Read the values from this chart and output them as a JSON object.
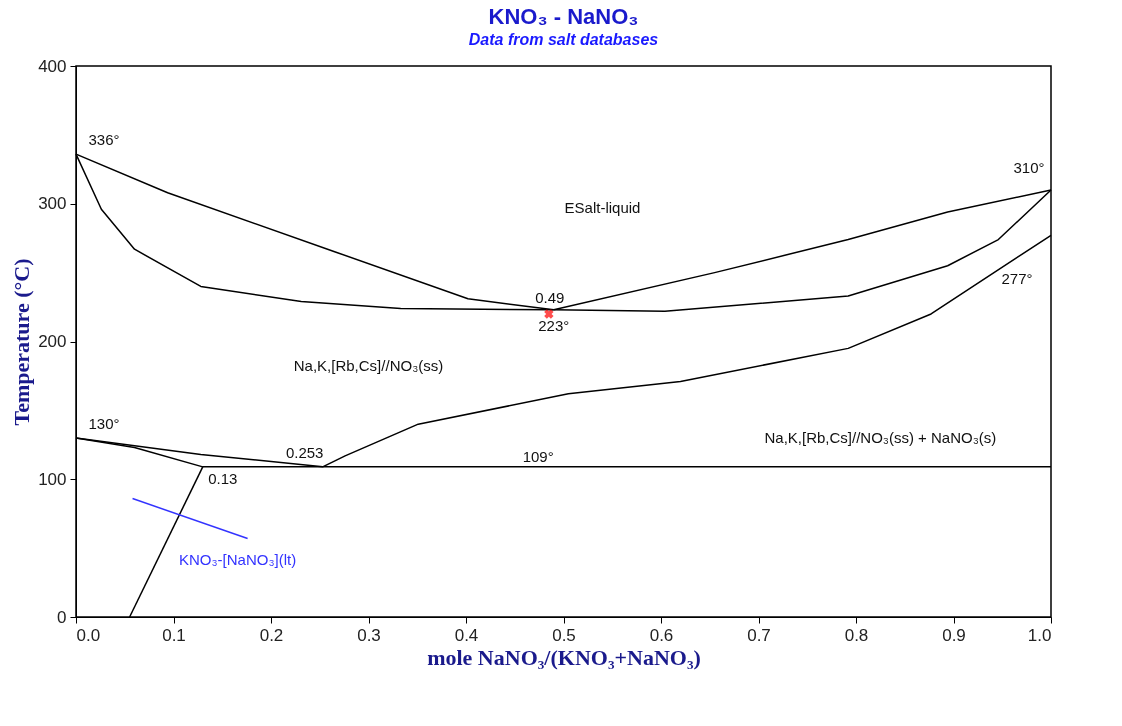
{
  "chart_data": {
    "type": "line",
    "title": "KNO₃ - NaNO₃",
    "subtitle": "Data from salt databases",
    "xlabel": "mole NaNO₃/(KNO₃+NaNO₃)",
    "ylabel": "Temperature (°C)",
    "xlim": [
      0,
      1
    ],
    "ylim": [
      0,
      400
    ],
    "xticks": [
      {
        "value": 0,
        "label": "0.0"
      },
      0.1,
      0.2,
      0.3,
      0.4,
      0.5,
      0.6,
      0.7,
      0.8,
      0.9,
      {
        "value": 1,
        "label": "1.0"
      }
    ],
    "yticks": [
      0,
      100,
      200,
      300,
      400
    ],
    "grid": false,
    "marker": "none",
    "line_style": "solid",
    "series": [
      {
        "color": "#000000",
        "x": [
          0,
          0.094,
          0.266,
          0.402,
          0.49
        ],
        "values": [
          336,
          308,
          265,
          231,
          223
        ]
      },
      {
        "color": "#000000",
        "x": [
          0,
          0.026,
          0.06,
          0.128,
          0.231,
          0.333,
          0.49
        ],
        "values": [
          336,
          296,
          267,
          240,
          229,
          224,
          223
        ]
      },
      {
        "color": "#000000",
        "x": [
          0.49,
          0.655,
          0.792,
          0.894,
          1
        ],
        "values": [
          223,
          250,
          274,
          294,
          310
        ]
      },
      {
        "color": "#000000",
        "x": [
          0.49,
          0.604,
          0.792,
          0.894,
          0.946,
          1
        ],
        "values": [
          223,
          222,
          233,
          255,
          274,
          310
        ]
      },
      {
        "color": "#000000",
        "x": [
          0,
          0.128,
          0.253,
          0.276,
          0.351,
          0.505,
          0.62,
          0.792,
          0.877,
          0.963,
          1
        ],
        "values": [
          130,
          118,
          109,
          117,
          140,
          162,
          171,
          195,
          220,
          260,
          277
        ]
      },
      {
        "color": "#000000",
        "x": [
          0,
          0.06,
          0.13,
          1
        ],
        "values": [
          130,
          123,
          109,
          109
        ]
      },
      {
        "color": "#000000",
        "x": [
          0.13,
          0.055
        ],
        "values": [
          109,
          0
        ]
      },
      {
        "name": "KNO₃-[NaNO₃](lt)",
        "color": "#3333ff",
        "x": [
          0.058,
          0.176
        ],
        "values": [
          86,
          57
        ]
      },
      {
        "type": "scatter",
        "marker": "cross",
        "color": "#ff0000",
        "x": [
          0.485
        ],
        "values": [
          220
        ]
      }
    ],
    "annotations": [
      {
        "text": "336°",
        "x": 0,
        "y": 336
      },
      {
        "text": "310°",
        "x": 1,
        "y": 310
      },
      {
        "text": "277°",
        "x": 1,
        "y": 277
      },
      {
        "text": "0.49",
        "x": 0.49,
        "y": 223
      },
      {
        "text": "223°",
        "x": 0.49,
        "y": 223
      },
      {
        "text": "130°",
        "x": 0,
        "y": 130
      },
      {
        "text": "0.253",
        "x": 0.253,
        "y": 109
      },
      {
        "text": "0.13",
        "x": 0.13,
        "y": 109
      },
      {
        "text": "109°",
        "x": 0.474,
        "y": 109
      },
      "ESalt-liquid",
      "Na,K,[Rb,Cs]//NO₃(ss)",
      "Na,K,[Rb,Cs]//NO₃(ss) + NaNO₃(s)"
    ]
  }
}
